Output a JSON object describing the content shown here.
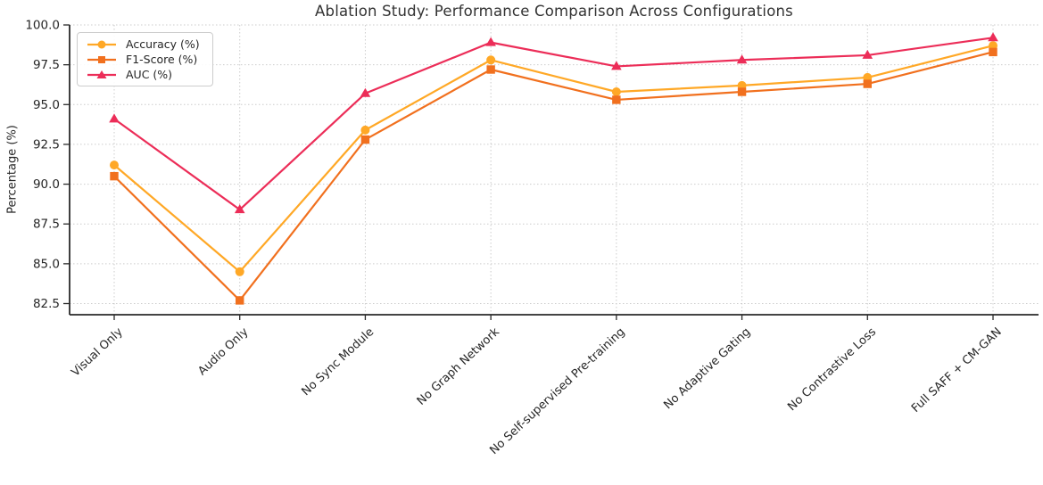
{
  "chart_data": {
    "type": "line",
    "title": "Ablation Study: Performance Comparison Across Configurations",
    "xlabel": "",
    "ylabel": "Percentage (%)",
    "categories": [
      "Visual Only",
      "Audio Only",
      "No Sync Module",
      "No Graph Network",
      "No Self-supervised Pre-training",
      "No Adaptive Gating",
      "No Contrastive Loss",
      "Full SAFF + CM-GAN"
    ],
    "series": [
      {
        "name": "Accuracy (%)",
        "marker": "circle",
        "color": "#FFA826",
        "values": [
          91.2,
          84.5,
          93.4,
          97.8,
          95.8,
          96.2,
          96.7,
          98.7
        ]
      },
      {
        "name": "F1-Score (%)",
        "marker": "square",
        "color": "#F1701E",
        "values": [
          90.5,
          82.7,
          92.8,
          97.2,
          95.3,
          95.8,
          96.3,
          98.3
        ]
      },
      {
        "name": "AUC (%)",
        "marker": "triangle",
        "color": "#EC2D58",
        "values": [
          94.1,
          88.4,
          95.7,
          98.9,
          97.4,
          97.8,
          98.1,
          99.2
        ]
      }
    ],
    "yticks": [
      82.5,
      85.0,
      87.5,
      90.0,
      92.5,
      95.0,
      97.5,
      100.0
    ],
    "ylim": [
      81.8,
      100.0
    ],
    "grid": "dashed-both-axes",
    "legend_position": "upper-left",
    "x_tick_rotation_deg": 43
  }
}
